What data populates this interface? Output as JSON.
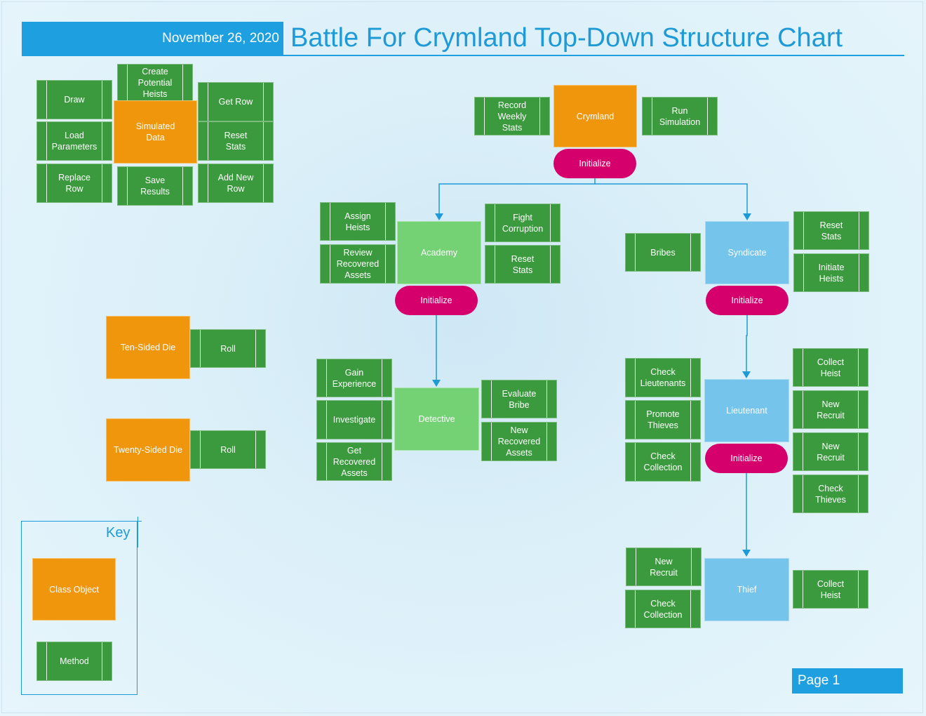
{
  "header": {
    "date": "November 26, 2020",
    "title": "Battle For Crymland Top-Down Structure Chart"
  },
  "simulated_data": {
    "name": "Simulated\nData",
    "methods": [
      "Draw",
      "Create\nPotential\nHeists",
      "Get Row",
      "Load\nParameters",
      "Reset\nStats",
      "Replace\nRow",
      "Save\nResults",
      "Add New\nRow"
    ]
  },
  "crymland": {
    "name": "Crymland",
    "init": "Initialize",
    "methods": [
      "Record\nWeekly\nStats",
      "Run\nSimulation"
    ]
  },
  "academy": {
    "name": "Academy",
    "init": "Initialize",
    "methods": [
      "Assign\nHeists",
      "Fight\nCorruption",
      "Review\nRecovered\nAssets",
      "Reset\nStats"
    ]
  },
  "syndicate": {
    "name": "Syndicate",
    "init": "Initialize",
    "methods": [
      "Bribes",
      "Reset\nStats",
      "Initiate\nHeists"
    ]
  },
  "detective": {
    "name": "Detective",
    "methods": [
      "Gain\nExperience",
      "Evaluate\nBribe",
      "Investigate",
      "New\nRecovered\nAssets",
      "Get\nRecovered\nAssets"
    ]
  },
  "lieutenant": {
    "name": "Lieutenant",
    "init": "Initialize",
    "methods": [
      "Check\nLieutenants",
      "Collect\nHeist",
      "Promote\nThieves",
      "New\nRecruit",
      "Check\nCollection",
      "New\nRecruit",
      "Check\nThieves"
    ]
  },
  "thief": {
    "name": "Thief",
    "methods": [
      "New\nRecruit",
      "Collect\nHeist",
      "Check\nCollection"
    ]
  },
  "ten_sided_die": {
    "name": "Ten-Sided Die",
    "method": "Roll"
  },
  "twenty_sided_die": {
    "name": "Twenty-Sided Die",
    "method": "Roll"
  },
  "key": {
    "title": "Key",
    "class_label": "Class Object",
    "method_label": "Method"
  },
  "page": {
    "label": "Page 1"
  },
  "colors": {
    "class_object": "#f0960c",
    "method": "#3a9a3d",
    "initialize": "#d6006d",
    "module_green": "#74d274",
    "module_blue": "#74c4ec",
    "accent": "#1ea0e0"
  }
}
